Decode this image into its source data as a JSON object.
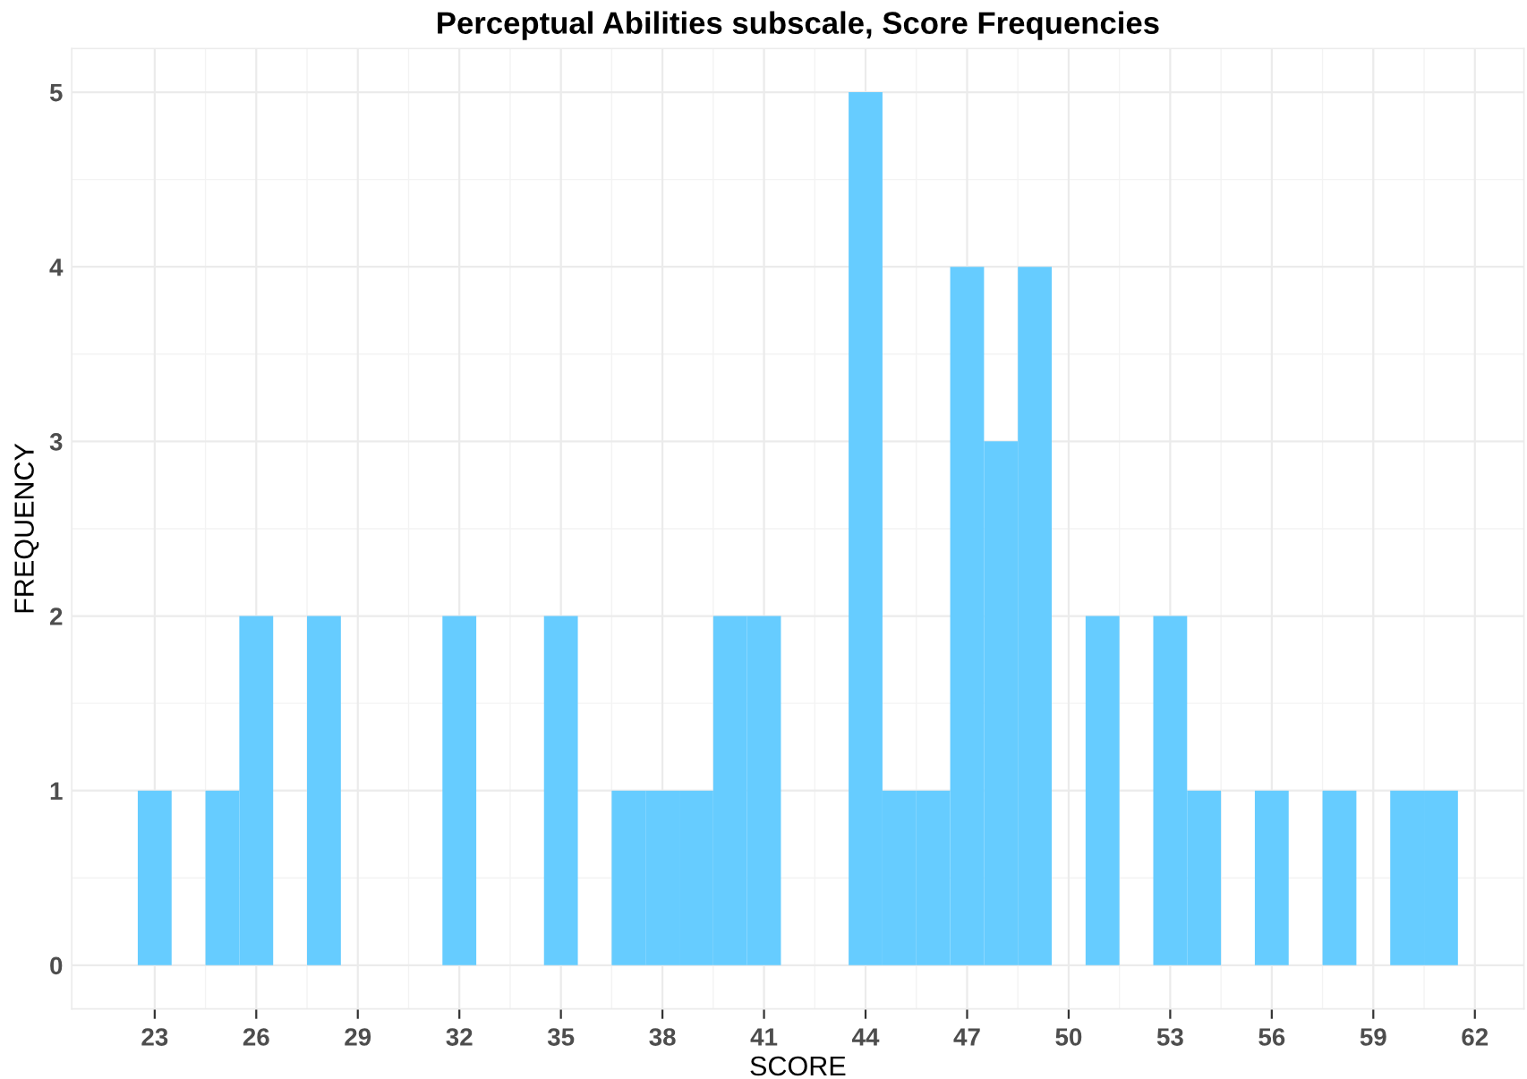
{
  "chart_data": {
    "type": "histogram",
    "title": "Perceptual Abilities subscale, Score Frequencies",
    "xlabel": "SCORE",
    "ylabel": "FREQUENCY",
    "bins": [
      22.5,
      23.5,
      24.5,
      25.5,
      26.5,
      27.5,
      28.5,
      29.5,
      30.5,
      31.5,
      32.5,
      33.5,
      34.5,
      35.5,
      36.5,
      37.5,
      38.5,
      39.5,
      40.5,
      41.5,
      42.5,
      43.5,
      44.5,
      45.5,
      46.5,
      47.5,
      48.5,
      49.5,
      50.5,
      51.5,
      52.5,
      53.5,
      54.5,
      55.5,
      56.5,
      57.5,
      58.5,
      59.5,
      60.5,
      61.5
    ],
    "values": [
      1,
      0,
      1,
      2,
      0,
      2,
      0,
      0,
      0,
      2,
      0,
      0,
      2,
      0,
      1,
      1,
      1,
      2,
      2,
      0,
      0,
      5,
      1,
      1,
      4,
      3,
      4,
      0,
      2,
      0,
      2,
      1,
      0,
      1,
      0,
      1,
      0,
      1,
      1
    ],
    "color": "#66ccff",
    "xlim": [
      20.55,
      63.45
    ],
    "ylim": [
      -0.25,
      5.25
    ],
    "xticks": [
      23,
      26,
      29,
      32,
      35,
      38,
      41,
      44,
      47,
      50,
      53,
      56,
      59,
      62
    ],
    "yticks": [
      0,
      1,
      2,
      3,
      4,
      5
    ],
    "grid": true
  }
}
